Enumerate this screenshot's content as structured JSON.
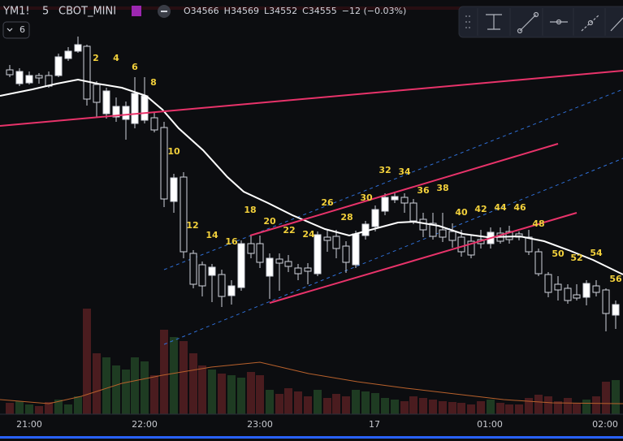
{
  "header": {
    "symbol": "YM1!",
    "interval": "5",
    "exchange": "CBOT_MINI",
    "ohlc": [
      {
        "label": "O",
        "value": "34566"
      },
      {
        "label": "H",
        "value": "34569"
      },
      {
        "label": "L",
        "value": "34552"
      },
      {
        "label": "C",
        "value": "34555"
      }
    ],
    "change": "−12 (−0.03%)",
    "badge": "6"
  },
  "bar_counts": [
    "2",
    "4",
    "6",
    "8",
    "10",
    "12",
    "14",
    "16",
    "18",
    "20",
    "22",
    "24",
    "26",
    "28",
    "30",
    "32",
    "34",
    "36",
    "38",
    "40",
    "42",
    "44",
    "46",
    "48",
    "50",
    "52",
    "54",
    "56"
  ],
  "x_axis": [
    "21:00",
    "22:00",
    "23:00",
    "17",
    "01:00",
    "02:00"
  ]
}
